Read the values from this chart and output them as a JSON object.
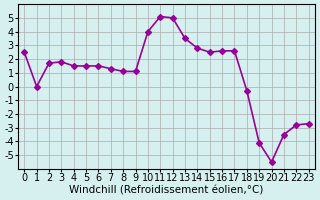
{
  "x": [
    0,
    1,
    2,
    3,
    4,
    5,
    6,
    7,
    8,
    9,
    10,
    11,
    12,
    13,
    14,
    15,
    16,
    17,
    18,
    19,
    20,
    21,
    22,
    23
  ],
  "y": [
    2.5,
    0.0,
    1.7,
    1.8,
    1.5,
    1.5,
    1.5,
    1.3,
    1.1,
    1.1,
    4.0,
    5.1,
    5.0,
    3.5,
    2.8,
    2.5,
    2.6,
    2.6,
    -0.3,
    -4.1,
    -5.5,
    -3.5,
    -2.8,
    -2.7
  ],
  "line_color": "#990099",
  "marker": "D",
  "markersize": 3,
  "linewidth": 1.2,
  "bg_color": "#d6f0f0",
  "grid_color": "#aaaaaa",
  "xlabel": "Windchill (Refroidissement éolien,°C)",
  "ylim": [
    -6,
    6
  ],
  "yticks": [
    -5,
    -4,
    -3,
    -2,
    -1,
    0,
    1,
    2,
    3,
    4,
    5
  ],
  "xticks": [
    0,
    1,
    2,
    3,
    4,
    5,
    6,
    7,
    8,
    9,
    10,
    11,
    12,
    13,
    14,
    15,
    16,
    17,
    18,
    19,
    20,
    21,
    22,
    23
  ],
  "xlabel_fontsize": 7.5,
  "tick_fontsize": 7
}
